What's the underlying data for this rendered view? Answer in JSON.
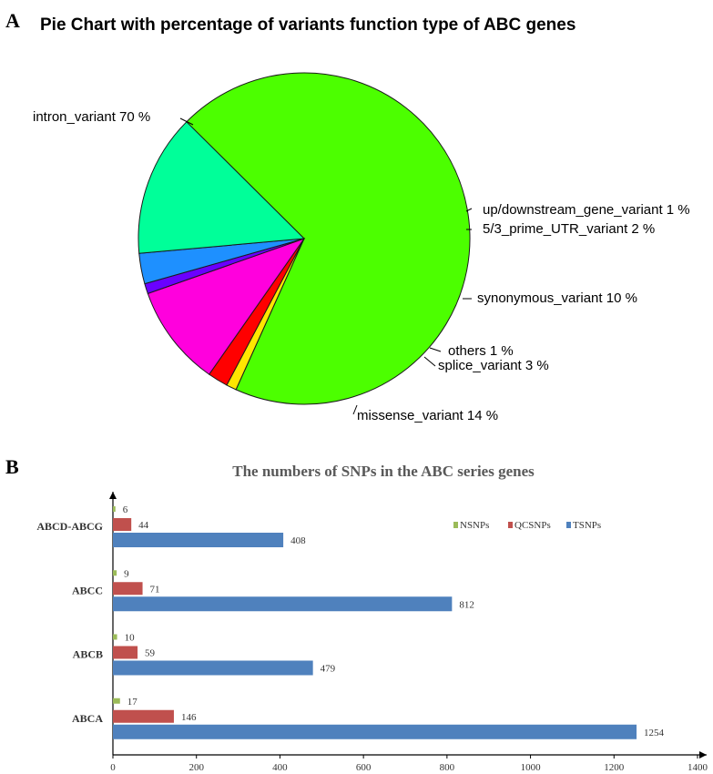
{
  "panels": {
    "a_letter": "A",
    "b_letter": "B"
  },
  "chart_data": [
    {
      "type": "pie",
      "title": "Pie Chart with percentage of variants function type of ABC genes",
      "start": "north-west, clockwise",
      "slices": [
        {
          "name": "intron_variant",
          "label": "intron_variant  70 %",
          "value": 70,
          "color": "#4cff00"
        },
        {
          "name": "up/downstream_gene_variant",
          "label": "up/downstream_gene_variant  1 %",
          "value": 1,
          "color": "#ffe600"
        },
        {
          "name": "5/3_prime_UTR_variant",
          "label": "5/3_prime_UTR_variant  2 %",
          "value": 2,
          "color": "#ff0000"
        },
        {
          "name": "synonymous_variant",
          "label": "synonymous_variant  10 %",
          "value": 10,
          "color": "#ff00dd"
        },
        {
          "name": "others",
          "label": "others  1 %",
          "value": 1,
          "color": "#6a00ff"
        },
        {
          "name": "splice_variant",
          "label": "splice_variant  3 %",
          "value": 3,
          "color": "#1e90ff"
        },
        {
          "name": "missense_variant",
          "label": "missense_variant  14 %",
          "value": 14,
          "color": "#00ff99"
        }
      ]
    },
    {
      "type": "bar",
      "orientation": "horizontal",
      "title": "The numbers of SNPs in the ABC series genes",
      "categories": [
        "ABCD-ABCG",
        "ABCC",
        "ABCB",
        "ABCA"
      ],
      "series": [
        {
          "name": "NSNPs",
          "color": "#9bbb59",
          "values": [
            6,
            9,
            10,
            17
          ]
        },
        {
          "name": "QCSNPs",
          "color": "#c0504d",
          "values": [
            44,
            71,
            59,
            146
          ]
        },
        {
          "name": "TSNPs",
          "color": "#4f81bd",
          "values": [
            408,
            812,
            479,
            1254
          ]
        }
      ],
      "xlim": [
        0,
        1400
      ],
      "xticks": [
        0,
        200,
        400,
        600,
        800,
        1000,
        1200,
        1400
      ],
      "legend": "top-right",
      "grid": false
    }
  ]
}
